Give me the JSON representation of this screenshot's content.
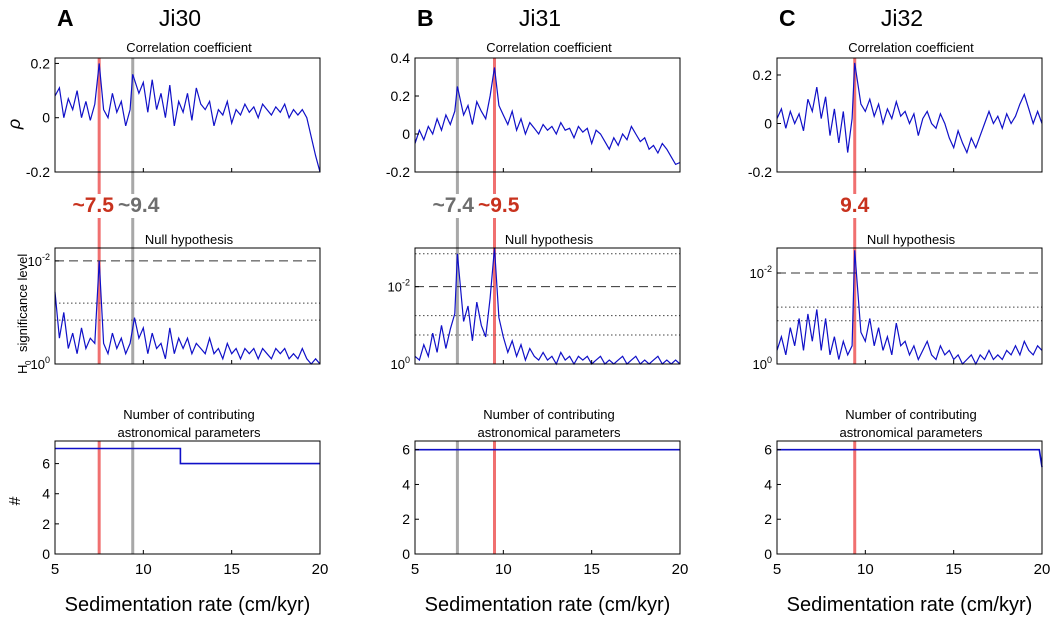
{
  "figure": {
    "shared": {
      "xlabel": "Sedimentation rate (cm/kyr)",
      "xticks": [
        5,
        10,
        15,
        20
      ],
      "row_titles": [
        "Correlation coefficient",
        "Null hypothesis",
        "Number of contributing",
        "astronomical parameters"
      ],
      "ylabels": [
        "ρ",
        "significance level",
        "#"
      ],
      "ylabel_h": "H",
      "ylabel_sub": "0",
      "log_ticks": [
        "10",
        "-2",
        "10",
        "0"
      ]
    },
    "colors": {
      "data": "#1010c8",
      "highlight_red": "#f07070",
      "highlight_gray": "#a8a8a8",
      "label_red": "#c8321e",
      "label_gray": "#6e6e6e"
    }
  },
  "chart_data": [
    {
      "type": "line",
      "panel": "A",
      "title": "Ji30",
      "xlim": [
        5,
        20
      ],
      "red_line": 7.5,
      "gray_line": 9.4,
      "rate_labels": {
        "red": "~7.5",
        "gray": "~9.4"
      },
      "correlation": {
        "ylim": [
          -0.2,
          0.22
        ],
        "yticks": [
          "0.2",
          "0",
          "-0.2"
        ],
        "x": [
          5.0,
          5.25,
          5.5,
          5.75,
          6.0,
          6.25,
          6.5,
          6.75,
          7.0,
          7.25,
          7.5,
          7.75,
          8.0,
          8.25,
          8.5,
          8.75,
          9.0,
          9.25,
          9.4,
          9.75,
          10.0,
          10.25,
          10.5,
          10.75,
          11.0,
          11.25,
          11.5,
          11.75,
          12.0,
          12.25,
          12.5,
          12.75,
          13.0,
          13.25,
          13.5,
          13.75,
          14.0,
          14.25,
          14.5,
          14.75,
          15.0,
          15.25,
          15.5,
          15.75,
          16.0,
          16.25,
          16.5,
          16.75,
          17.0,
          17.25,
          17.5,
          17.75,
          18.0,
          18.25,
          18.5,
          18.75,
          19.0,
          19.25,
          19.5,
          19.75,
          20.0
        ],
        "values": [
          0.08,
          0.11,
          0.0,
          0.07,
          0.03,
          0.1,
          0.0,
          0.06,
          -0.01,
          0.05,
          0.2,
          0.03,
          0.0,
          0.09,
          0.02,
          0.06,
          -0.03,
          0.03,
          0.16,
          0.09,
          0.13,
          0.02,
          0.14,
          0.03,
          0.09,
          0.0,
          0.12,
          -0.03,
          0.06,
          0.02,
          0.09,
          -0.01,
          0.11,
          0.05,
          0.03,
          0.06,
          -0.03,
          0.03,
          0.01,
          0.06,
          -0.02,
          0.03,
          0.01,
          0.05,
          0.02,
          0.04,
          0.0,
          0.05,
          0.03,
          0.01,
          0.04,
          0.02,
          0.05,
          0.0,
          0.03,
          0.01,
          0.03,
          0.0,
          -0.07,
          -0.14,
          -0.2
        ]
      },
      "null_hypothesis": {
        "ylim": [
          0,
          2.25
        ],
        "dashed_level": 2.0,
        "dotted_levels": [
          1.18,
          0.85
        ],
        "x": [
          5.0,
          5.25,
          5.5,
          5.75,
          6.0,
          6.25,
          6.5,
          6.75,
          7.0,
          7.25,
          7.5,
          7.75,
          8.0,
          8.25,
          8.5,
          8.75,
          9.0,
          9.25,
          9.5,
          9.75,
          10.0,
          10.25,
          10.5,
          10.75,
          11.0,
          11.25,
          11.5,
          11.75,
          12.0,
          12.25,
          12.5,
          12.75,
          13.0,
          13.25,
          13.5,
          13.75,
          14.0,
          14.25,
          14.5,
          14.75,
          15.0,
          15.25,
          15.5,
          15.75,
          16.0,
          16.25,
          16.5,
          16.75,
          17.0,
          17.25,
          17.5,
          17.75,
          18.0,
          18.25,
          18.5,
          18.75,
          19.0,
          19.25,
          19.5,
          19.75,
          20.0
        ],
        "values": [
          1.4,
          0.5,
          1.0,
          0.3,
          0.6,
          0.2,
          0.7,
          0.3,
          0.5,
          0.4,
          2.0,
          0.4,
          0.2,
          0.6,
          0.3,
          0.5,
          0.2,
          0.4,
          0.9,
          0.5,
          0.7,
          0.2,
          0.6,
          0.3,
          0.4,
          0.1,
          0.7,
          0.2,
          0.5,
          0.3,
          0.5,
          0.2,
          0.4,
          0.3,
          0.2,
          0.5,
          0.2,
          0.3,
          0.1,
          0.4,
          0.2,
          0.3,
          0.1,
          0.3,
          0.2,
          0.3,
          0.1,
          0.3,
          0.2,
          0.1,
          0.3,
          0.2,
          0.3,
          0.1,
          0.2,
          0.1,
          0.3,
          0.1,
          0.0,
          0.1,
          0.0
        ]
      },
      "parameters": {
        "ylim": [
          0,
          7.5
        ],
        "yticks": [
          "6",
          "4",
          "2",
          "0"
        ],
        "x": [
          5,
          12.1,
          12.1,
          20
        ],
        "values": [
          7,
          7,
          6,
          6
        ]
      }
    },
    {
      "type": "line",
      "panel": "B",
      "title": "Ji31",
      "xlim": [
        5,
        20
      ],
      "red_line": 9.5,
      "gray_line": 7.4,
      "rate_labels": {
        "red": "~9.5",
        "gray": "~7.4"
      },
      "correlation": {
        "ylim": [
          -0.2,
          0.4
        ],
        "yticks": [
          "0.4",
          "0.2",
          "0",
          "-0.2"
        ],
        "x": [
          5.0,
          5.25,
          5.5,
          5.75,
          6.0,
          6.25,
          6.5,
          6.75,
          7.0,
          7.25,
          7.4,
          7.75,
          8.0,
          8.25,
          8.5,
          8.75,
          9.0,
          9.25,
          9.5,
          9.75,
          10.0,
          10.25,
          10.5,
          10.75,
          11.0,
          11.25,
          11.5,
          11.75,
          12.0,
          12.25,
          12.5,
          12.75,
          13.0,
          13.25,
          13.5,
          13.75,
          14.0,
          14.25,
          14.5,
          14.75,
          15.0,
          15.25,
          15.5,
          15.75,
          16.0,
          16.25,
          16.5,
          16.75,
          17.0,
          17.25,
          17.5,
          17.75,
          18.0,
          18.25,
          18.5,
          18.75,
          19.0,
          19.25,
          19.5,
          19.75,
          20.0
        ],
        "values": [
          -0.05,
          0.02,
          -0.03,
          0.04,
          0.0,
          0.08,
          0.02,
          0.1,
          0.05,
          0.12,
          0.25,
          0.1,
          0.15,
          0.05,
          0.17,
          0.12,
          0.08,
          0.2,
          0.35,
          0.15,
          0.1,
          0.05,
          0.12,
          0.02,
          0.08,
          0.0,
          0.06,
          0.03,
          0.0,
          0.05,
          0.02,
          0.04,
          0.0,
          0.06,
          0.02,
          0.03,
          -0.02,
          0.04,
          0.01,
          0.03,
          -0.05,
          0.02,
          0.0,
          -0.04,
          -0.08,
          -0.02,
          -0.06,
          0.0,
          -0.03,
          0.04,
          0.0,
          -0.04,
          -0.02,
          -0.08,
          -0.06,
          -0.1,
          -0.05,
          -0.08,
          -0.12,
          -0.16,
          -0.15
        ]
      },
      "null_hypothesis": {
        "ylim": [
          0,
          3.0
        ],
        "dashed_level": 2.0,
        "dotted_levels": [
          2.85,
          1.25,
          0.75
        ],
        "x": [
          5.0,
          5.25,
          5.5,
          5.75,
          6.0,
          6.25,
          6.5,
          6.75,
          7.0,
          7.25,
          7.4,
          7.75,
          8.0,
          8.25,
          8.5,
          8.75,
          9.0,
          9.25,
          9.5,
          9.75,
          10.0,
          10.25,
          10.5,
          10.75,
          11.0,
          11.25,
          11.5,
          11.75,
          12.0,
          12.25,
          12.5,
          12.75,
          13.0,
          13.25,
          13.5,
          13.75,
          14.0,
          14.25,
          14.5,
          14.75,
          15.0,
          15.25,
          15.5,
          15.75,
          16.0,
          16.25,
          16.5,
          16.75,
          17.0,
          17.25,
          17.5,
          17.75,
          18.0,
          18.25,
          18.5,
          18.75,
          19.0,
          19.25,
          19.5,
          19.75,
          20.0
        ],
        "values": [
          0.2,
          0.1,
          0.5,
          0.2,
          0.8,
          0.3,
          1.0,
          0.4,
          0.9,
          1.3,
          2.85,
          1.1,
          1.5,
          0.6,
          1.6,
          1.0,
          0.7,
          1.7,
          3.0,
          1.2,
          0.7,
          0.3,
          0.6,
          0.2,
          0.5,
          0.1,
          0.4,
          0.2,
          0.1,
          0.3,
          0.1,
          0.2,
          0.0,
          0.3,
          0.1,
          0.2,
          0.0,
          0.2,
          0.1,
          0.2,
          0.0,
          0.1,
          0.2,
          0.0,
          0.1,
          0.0,
          0.1,
          0.2,
          0.0,
          0.1,
          0.2,
          0.0,
          0.1,
          0.0,
          0.1,
          0.2,
          0.0,
          0.1,
          0.0,
          0.1,
          0.0
        ]
      },
      "parameters": {
        "ylim": [
          0,
          6.5
        ],
        "yticks": [
          "6",
          "4",
          "2",
          "0"
        ],
        "x": [
          5,
          20
        ],
        "values": [
          6,
          6
        ]
      }
    },
    {
      "type": "line",
      "panel": "C",
      "title": "Ji32",
      "xlim": [
        5,
        20
      ],
      "red_line": 9.4,
      "rate_labels": {
        "red": "9.4"
      },
      "correlation": {
        "ylim": [
          -0.2,
          0.27
        ],
        "yticks": [
          "0.2",
          "0",
          "-0.2"
        ],
        "x": [
          5.0,
          5.25,
          5.5,
          5.75,
          6.0,
          6.25,
          6.5,
          6.75,
          7.0,
          7.25,
          7.5,
          7.75,
          8.0,
          8.25,
          8.5,
          8.75,
          9.0,
          9.25,
          9.4,
          9.75,
          10.0,
          10.25,
          10.5,
          10.75,
          11.0,
          11.25,
          11.5,
          11.75,
          12.0,
          12.25,
          12.5,
          12.75,
          13.0,
          13.25,
          13.5,
          13.75,
          14.0,
          14.25,
          14.5,
          14.75,
          15.0,
          15.25,
          15.5,
          15.75,
          16.0,
          16.25,
          16.5,
          16.75,
          17.0,
          17.25,
          17.5,
          17.75,
          18.0,
          18.25,
          18.5,
          18.75,
          19.0,
          19.25,
          19.5,
          19.75,
          20.0
        ],
        "values": [
          0.02,
          0.06,
          -0.02,
          0.05,
          0.0,
          0.04,
          -0.03,
          0.1,
          0.05,
          0.15,
          0.02,
          0.11,
          -0.05,
          0.06,
          -0.08,
          0.05,
          -0.12,
          0.02,
          0.25,
          0.08,
          0.05,
          0.1,
          0.03,
          0.08,
          0.0,
          0.06,
          0.02,
          0.09,
          0.03,
          0.05,
          0.0,
          0.04,
          -0.05,
          0.02,
          0.05,
          0.0,
          -0.02,
          0.04,
          0.0,
          -0.06,
          -0.1,
          -0.03,
          -0.08,
          -0.12,
          -0.06,
          -0.1,
          -0.05,
          0.0,
          0.05,
          0.0,
          0.03,
          -0.02,
          0.04,
          0.0,
          0.03,
          0.08,
          0.12,
          0.06,
          0.0,
          0.05,
          0.0
        ]
      },
      "null_hypothesis": {
        "ylim": [
          0,
          2.55
        ],
        "dashed_level": 2.0,
        "dotted_levels": [
          1.25,
          0.95
        ],
        "x": [
          5.0,
          5.25,
          5.5,
          5.75,
          6.0,
          6.25,
          6.5,
          6.75,
          7.0,
          7.25,
          7.5,
          7.75,
          8.0,
          8.25,
          8.5,
          8.75,
          9.0,
          9.25,
          9.4,
          9.75,
          10.0,
          10.25,
          10.5,
          10.75,
          11.0,
          11.25,
          11.5,
          11.75,
          12.0,
          12.25,
          12.5,
          12.75,
          13.0,
          13.25,
          13.5,
          13.75,
          14.0,
          14.25,
          14.5,
          14.75,
          15.0,
          15.25,
          15.5,
          15.75,
          16.0,
          16.25,
          16.5,
          16.75,
          17.0,
          17.25,
          17.5,
          17.75,
          18.0,
          18.25,
          18.5,
          18.75,
          19.0,
          19.25,
          19.5,
          19.75,
          20.0
        ],
        "values": [
          0.3,
          0.6,
          0.2,
          0.8,
          0.4,
          1.0,
          0.3,
          1.1,
          0.5,
          1.2,
          0.3,
          1.0,
          0.2,
          0.6,
          0.1,
          0.5,
          0.2,
          0.4,
          2.5,
          0.7,
          0.5,
          1.0,
          0.4,
          0.8,
          0.3,
          0.6,
          0.2,
          0.9,
          0.4,
          0.5,
          0.2,
          0.4,
          0.1,
          0.3,
          0.5,
          0.2,
          0.1,
          0.4,
          0.2,
          0.3,
          0.1,
          0.2,
          0.0,
          0.1,
          0.2,
          0.0,
          0.2,
          0.1,
          0.3,
          0.1,
          0.2,
          0.1,
          0.3,
          0.2,
          0.4,
          0.2,
          0.5,
          0.3,
          0.2,
          0.4,
          0.3
        ]
      },
      "parameters": {
        "ylim": [
          0,
          6.5
        ],
        "yticks": [
          "6",
          "4",
          "2",
          "0"
        ],
        "x": [
          5,
          19.85,
          20
        ],
        "values": [
          6,
          6,
          5
        ]
      }
    }
  ]
}
